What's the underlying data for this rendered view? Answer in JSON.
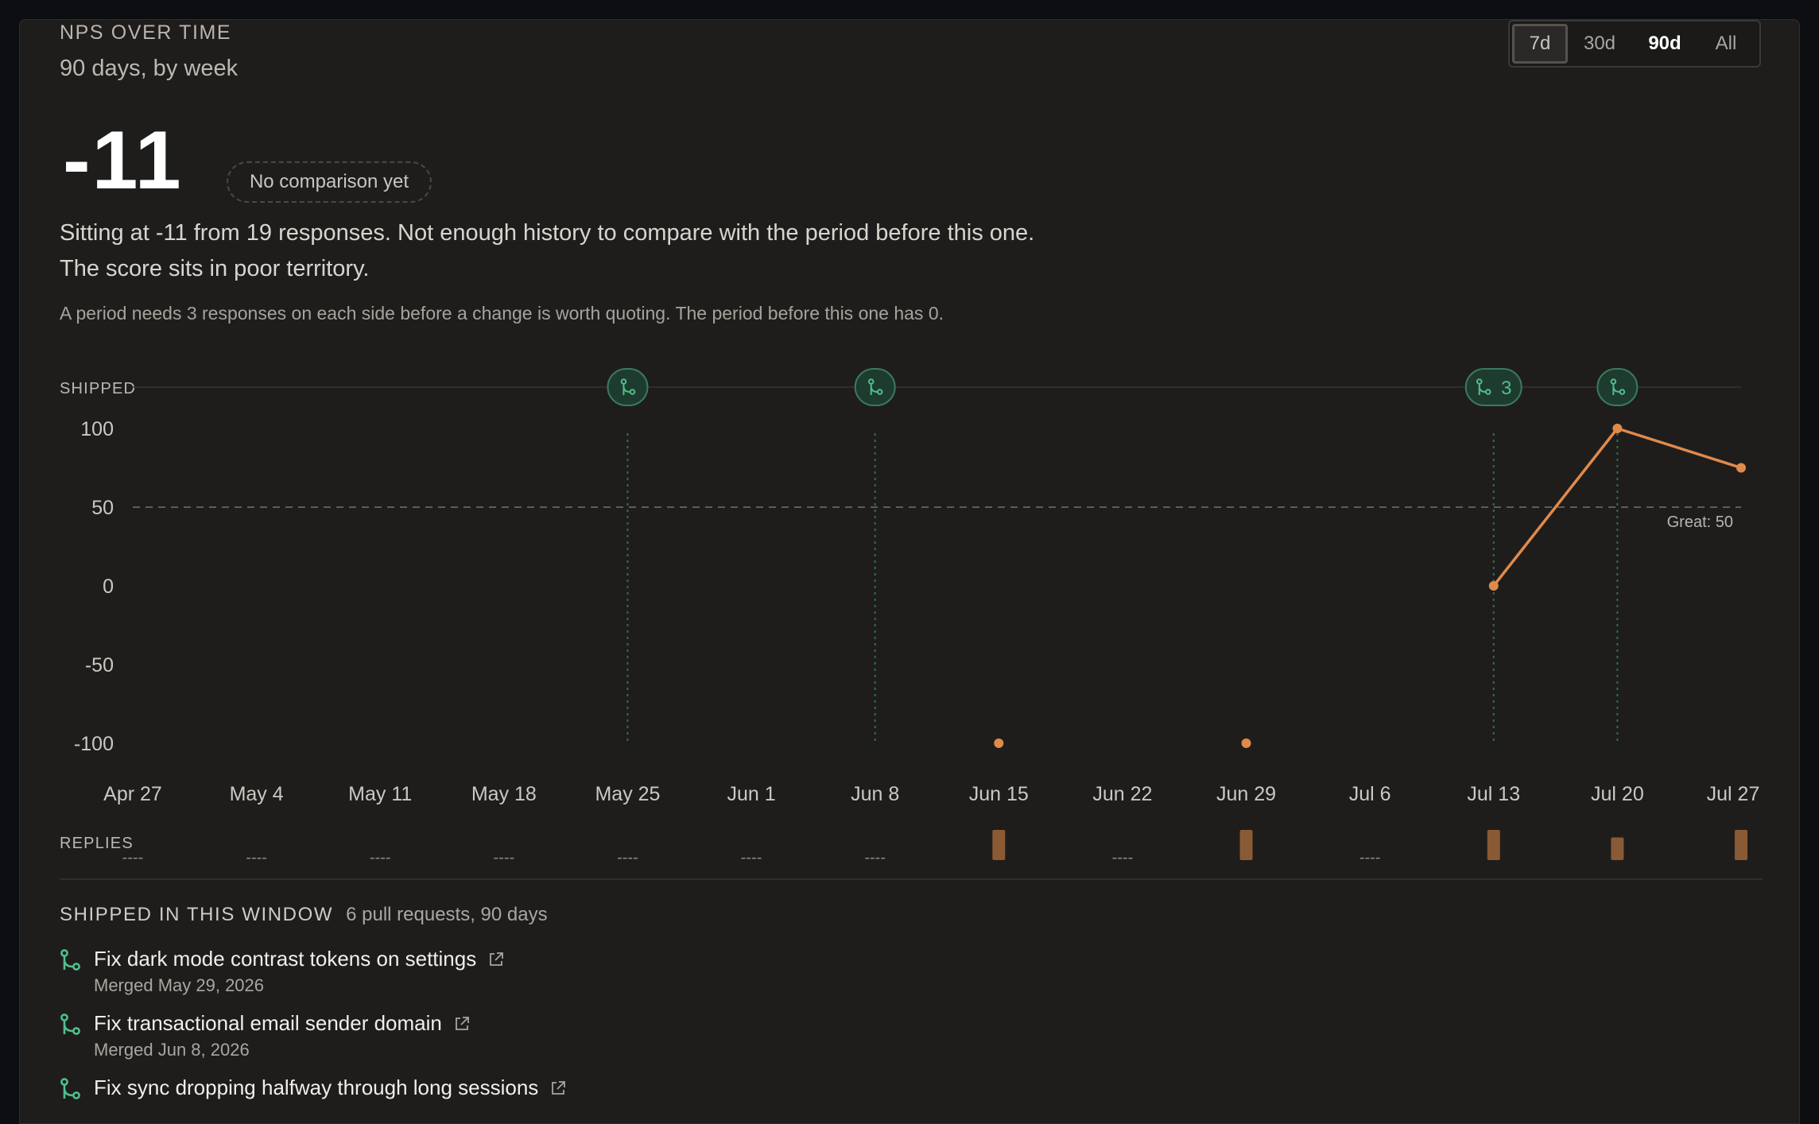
{
  "header": {
    "eyebrow": "NPS OVER TIME",
    "subtitle": "90 days, by week"
  },
  "range_selector": {
    "options": [
      "7d",
      "30d",
      "90d",
      "All"
    ],
    "selected": "90d",
    "focused": "7d"
  },
  "score": {
    "value": "-11",
    "badge": "No comparison yet",
    "summary": "Sitting at -11 from 19 responses. Not enough history to compare with the period before this one. The score sits in poor territory.",
    "note": "A period needs 3 responses on each side before a change is worth quoting. The period before this one has 0."
  },
  "colors": {
    "accent_orange": "#e08a4a",
    "shipped_green": "#4fbf8a",
    "panel_bg": "#1e1d1c"
  },
  "chart_data": {
    "type": "line",
    "title": "",
    "xlabel": "",
    "ylabel": "",
    "ylim": [
      -100,
      100
    ],
    "yticks": [
      100,
      50,
      0,
      -50,
      -100
    ],
    "x": [
      "Apr 27",
      "May 4",
      "May 11",
      "May 18",
      "May 25",
      "Jun 1",
      "Jun 8",
      "Jun 15",
      "Jun 22",
      "Jun 29",
      "Jul 6",
      "Jul 13",
      "Jul 20",
      "Jul 27"
    ],
    "series": [
      {
        "values": [
          null,
          null,
          null,
          null,
          null,
          null,
          null,
          -100,
          null,
          -100,
          null,
          0,
          100,
          75
        ]
      }
    ],
    "reference_line": {
      "value": 50,
      "label": "Great: 50"
    },
    "shipped_label": "SHIPPED",
    "shipped_markers": [
      {
        "week": "May 25",
        "count": ""
      },
      {
        "week": "Jun 8",
        "count": ""
      },
      {
        "week": "Jul 13",
        "count": "3"
      },
      {
        "week": "Jul 20",
        "count": ""
      }
    ],
    "replies_label": "REPLIES",
    "replies": [
      null,
      null,
      null,
      null,
      null,
      null,
      null,
      1,
      null,
      1,
      null,
      1,
      0.75,
      1
    ],
    "replies_empty_text": "----",
    "grid": false
  },
  "shipped_window": {
    "title": "SHIPPED IN THIS WINDOW",
    "summary": "6 pull requests, 90 days",
    "items": [
      {
        "title": "Fix dark mode contrast tokens on settings",
        "meta": "Merged May 29, 2026"
      },
      {
        "title": "Fix transactional email sender domain",
        "meta": "Merged Jun 8, 2026"
      },
      {
        "title": "Fix sync dropping halfway through long sessions",
        "meta": ""
      }
    ]
  }
}
